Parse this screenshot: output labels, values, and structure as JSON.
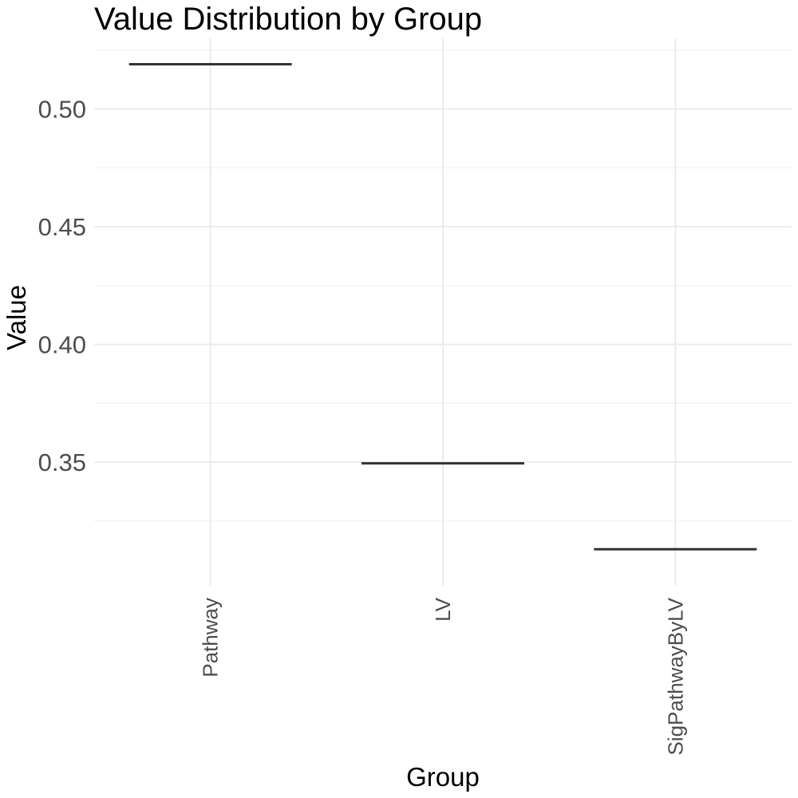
{
  "chart_data": {
    "type": "box",
    "title": "Value Distribution by Group",
    "xlabel": "Group",
    "ylabel": "Value",
    "categories": [
      "Pathway",
      "LV",
      "SigPathwayByLV"
    ],
    "values": [
      0.519,
      0.3495,
      0.313
    ],
    "ylim": [
      0.2975,
      0.53
    ],
    "yticks": [
      0.35,
      0.4,
      0.45,
      0.5
    ],
    "ytick_labels": [
      "0.35",
      "0.40",
      "0.45",
      "0.50"
    ],
    "grid": true,
    "legend": "none",
    "mark_color": "#333333"
  }
}
